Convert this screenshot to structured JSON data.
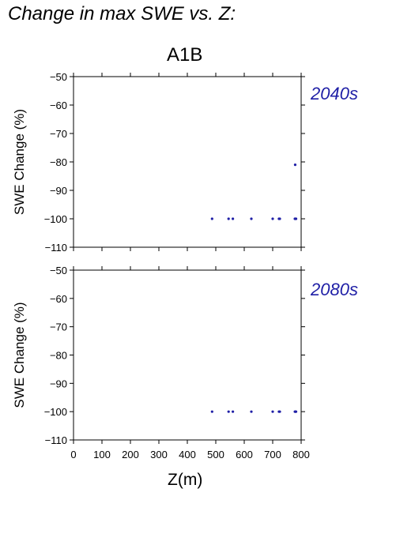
{
  "figure": {
    "title": "Change in max SWE vs. Z:",
    "scenario": "A1B",
    "xlabel": "Z(m)"
  },
  "chart_data": [
    {
      "type": "scatter",
      "panel_label": "2040s",
      "ylabel": "SWE Change (%)",
      "xlim": [
        0,
        800
      ],
      "ylim": [
        -110,
        -50
      ],
      "yticks": [
        -50,
        -60,
        -70,
        -80,
        -90,
        -100,
        -110
      ],
      "xticks": [],
      "marker_color": "#1f1fa6",
      "series": [
        {
          "x": [
            487,
            545,
            560,
            625,
            700,
            722,
            725,
            778,
            780,
            782,
            779
          ],
          "y": [
            -100,
            -100,
            -100,
            -100,
            -100,
            -100,
            -100,
            -100,
            -100,
            -100,
            -81
          ]
        }
      ]
    },
    {
      "type": "scatter",
      "panel_label": "2080s",
      "ylabel": "SWE Change (%)",
      "xlim": [
        0,
        800
      ],
      "ylim": [
        -110,
        -50
      ],
      "yticks": [
        -50,
        -60,
        -70,
        -80,
        -90,
        -100,
        -110
      ],
      "xticks": [
        0,
        100,
        200,
        300,
        400,
        500,
        600,
        700,
        800
      ],
      "marker_color": "#1f1fa6",
      "series": [
        {
          "x": [
            487,
            545,
            560,
            625,
            700,
            722,
            725,
            778,
            780,
            782
          ],
          "y": [
            -100,
            -100,
            -100,
            -100,
            -100,
            -100,
            -100,
            -100,
            -100,
            -100
          ]
        }
      ]
    }
  ]
}
